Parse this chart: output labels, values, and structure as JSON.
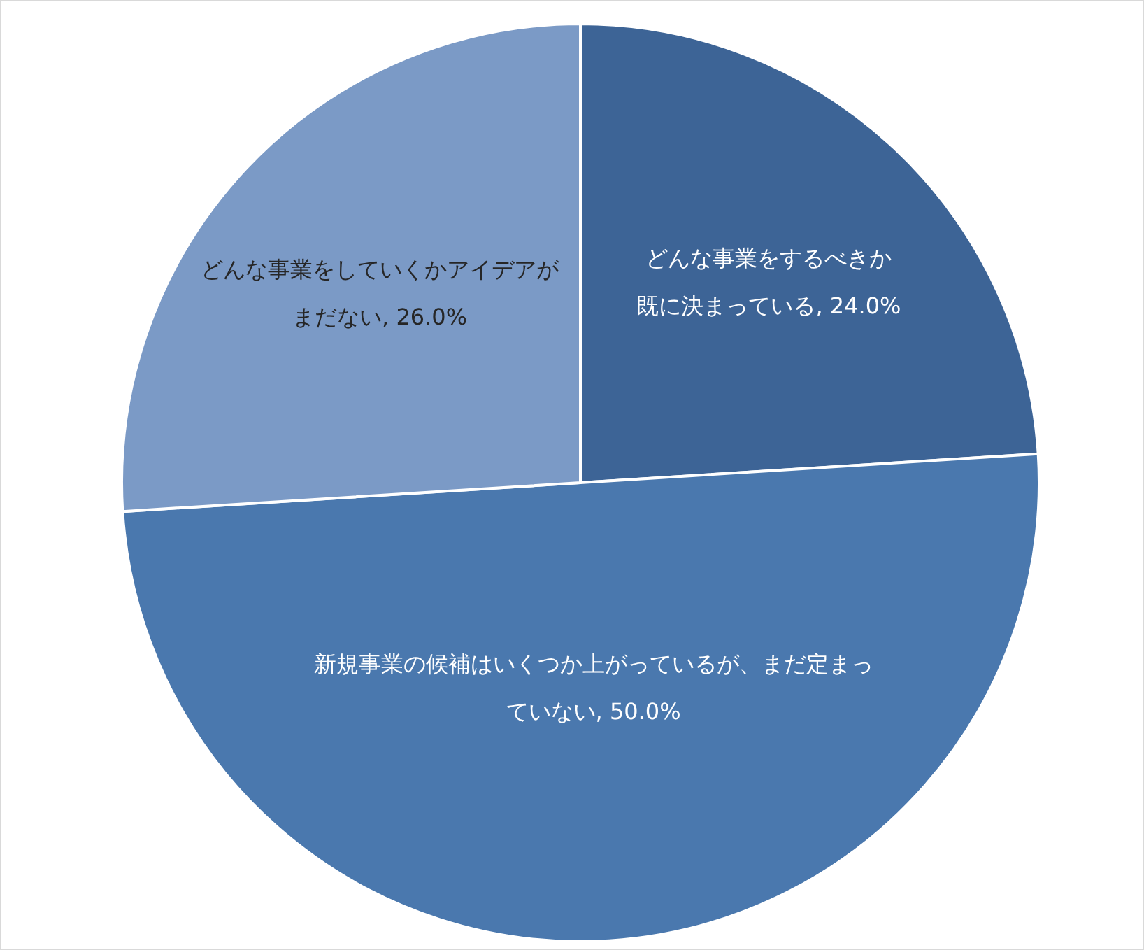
{
  "chart_data": {
    "type": "pie",
    "categories": [
      "どんな事業をするべきか既に決まっている",
      "新規事業の候補はいくつか上がっているが、まだ定まっていない",
      "どんな事業をしていくかアイデアがまだない"
    ],
    "values": [
      24,
      50,
      26
    ],
    "value_labels": [
      "24.0%",
      "50.0%",
      "26.0%"
    ],
    "colors": [
      "#3d6496",
      "#4a78ae",
      "#7b9ac6"
    ]
  }
}
